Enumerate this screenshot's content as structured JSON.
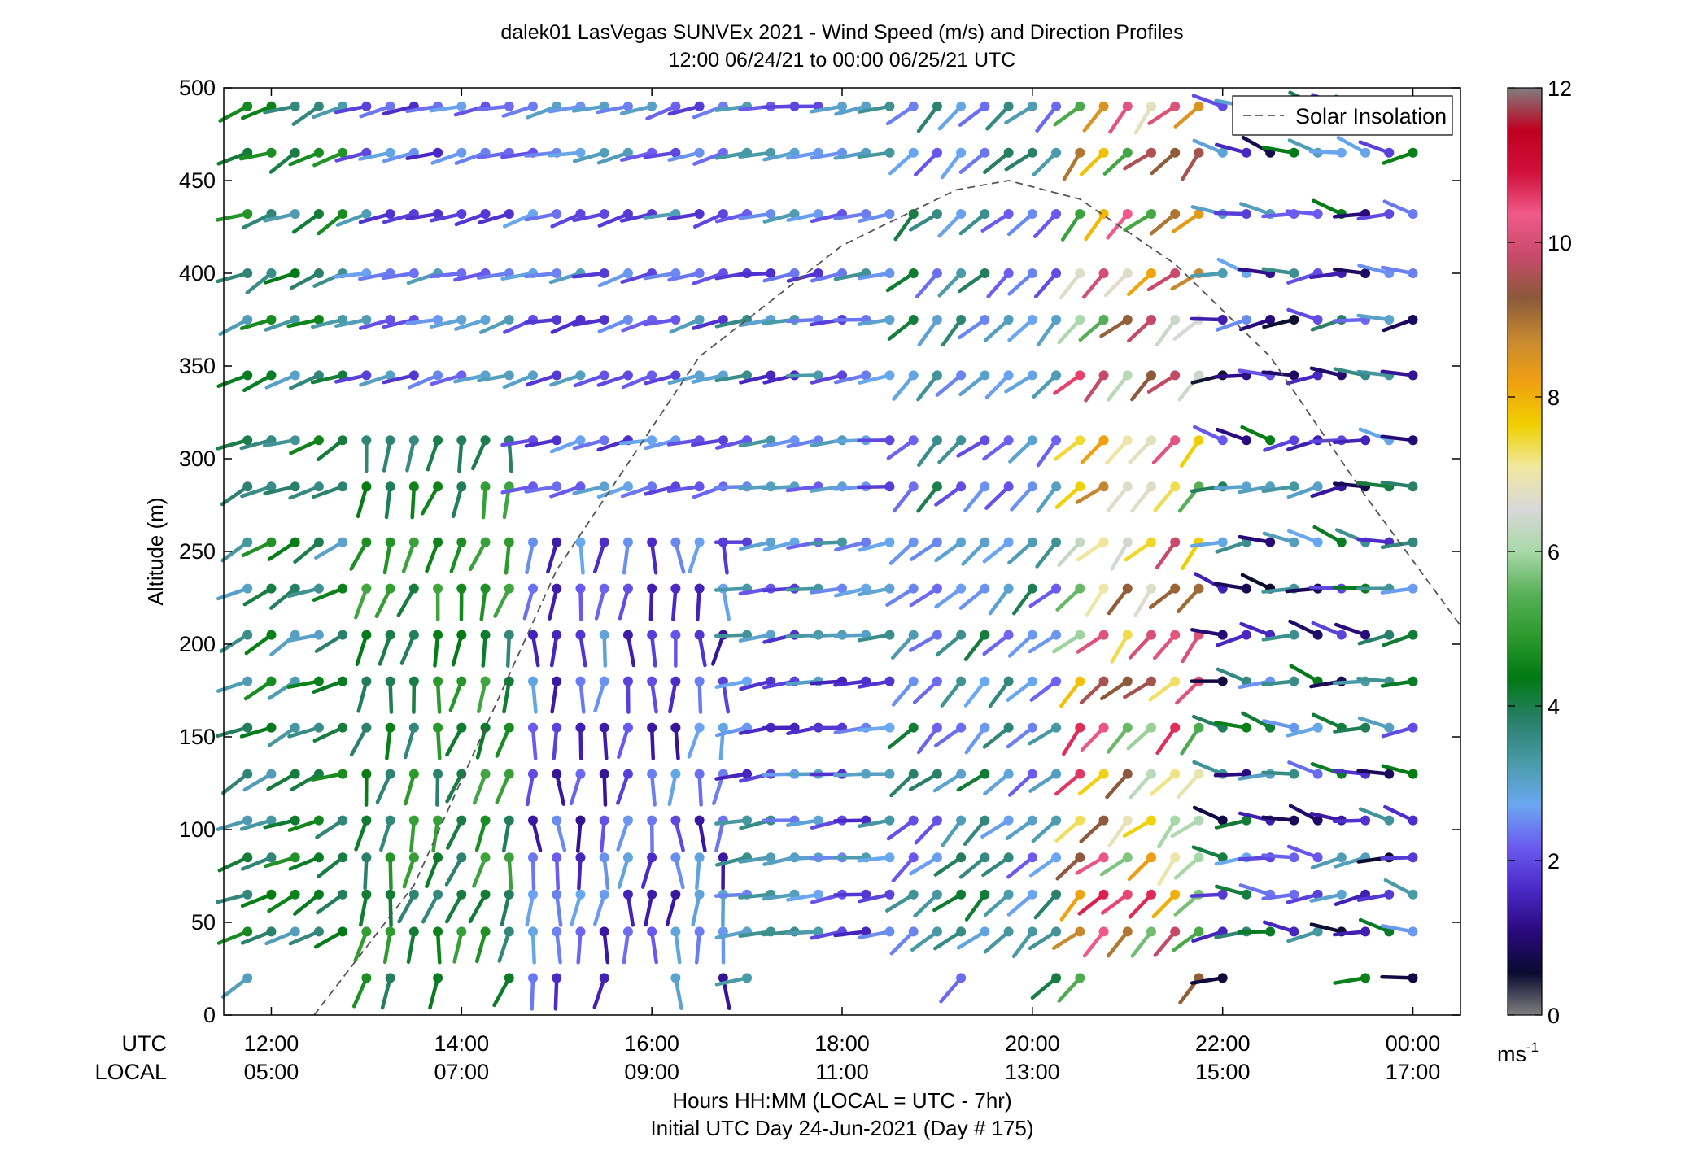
{
  "chart_data": {
    "type": "wind-barb-profile",
    "title": "dalek01 LasVegas SUNVEx 2021 - Wind Speed (m/s) and Direction Profiles",
    "subtitle": "12:00 06/24/21 to 00:00 06/25/21  UTC",
    "ylabel": "Altitude (m)",
    "xlabel_line1": "Hours HH:MM  (LOCAL = UTC - 7hr)",
    "xlabel_line2": "Initial UTC Day 24-Jun-2021 (Day # 175)",
    "ylim": [
      0,
      500
    ],
    "xlim_hours": [
      11.5,
      24.5
    ],
    "yticks": [
      0,
      50,
      100,
      150,
      200,
      250,
      300,
      350,
      400,
      450,
      500
    ],
    "xtick_hours": [
      12,
      14,
      16,
      18,
      20,
      22,
      24
    ],
    "row_labels": [
      "UTC",
      "LOCAL"
    ],
    "utc_tick_labels": [
      "12:00",
      "14:00",
      "16:00",
      "18:00",
      "20:00",
      "22:00",
      "00:00"
    ],
    "local_tick_labels": [
      "05:00",
      "07:00",
      "09:00",
      "11:00",
      "13:00",
      "15:00",
      "17:00"
    ],
    "colorbar": {
      "min": 0,
      "max": 12,
      "ticks": [
        0,
        2,
        4,
        6,
        8,
        10,
        12
      ],
      "unit_label": "ms",
      "unit_exponent": "-1"
    },
    "legend": {
      "position": "top-right",
      "entries": [
        "Solar Insolation"
      ]
    },
    "solar_insolation_curve": {
      "description": "dashed curve, normalized to altitude axis",
      "points": [
        [
          12.45,
          0
        ],
        [
          13.5,
          70
        ],
        [
          15.0,
          240
        ],
        [
          16.5,
          355
        ],
        [
          18.0,
          415
        ],
        [
          19.2,
          445
        ],
        [
          19.75,
          450
        ],
        [
          20.5,
          440
        ],
        [
          21.5,
          405
        ],
        [
          22.5,
          355
        ],
        [
          23.5,
          280
        ],
        [
          24.5,
          210
        ]
      ]
    },
    "times_hours": [
      11.75,
      12.0,
      12.25,
      12.5,
      12.75,
      13.0,
      13.25,
      13.5,
      13.75,
      14.0,
      14.25,
      14.5,
      14.75,
      15.0,
      15.25,
      15.5,
      15.75,
      16.0,
      16.25,
      16.5,
      16.75,
      17.0,
      17.25,
      17.5,
      17.75,
      18.0,
      18.25,
      18.5,
      18.75,
      19.0,
      19.25,
      19.5,
      19.75,
      20.0,
      20.25,
      20.5,
      20.75,
      21.0,
      21.25,
      21.5,
      21.75,
      22.0,
      22.25,
      22.5,
      22.75,
      23.0,
      23.25,
      23.5,
      23.75,
      24.0
    ],
    "altitudes_m": [
      20,
      45,
      65,
      85,
      105,
      130,
      155,
      180,
      205,
      230,
      255,
      285,
      310,
      345,
      375,
      400,
      432,
      465,
      490
    ],
    "regimes": [
      {
        "hours": [
          11.5,
          12.8
        ],
        "alt_m": [
          0,
          500
        ],
        "direction_deg_range": [
          100,
          130
        ],
        "speed_ms_range": [
          3.0,
          4.8
        ]
      },
      {
        "hours": [
          12.8,
          14.6
        ],
        "alt_m": [
          0,
          330
        ],
        "direction_deg_range": [
          150,
          185
        ],
        "speed_ms_range": [
          3.6,
          5.2
        ]
      },
      {
        "hours": [
          14.6,
          16.8
        ],
        "alt_m": [
          0,
          280
        ],
        "direction_deg_range": [
          160,
          195
        ],
        "speed_ms_range": [
          1.2,
          3.0
        ]
      },
      {
        "hours": [
          16.8,
          18.6
        ],
        "alt_m": [
          0,
          500
        ],
        "direction_deg_range": [
          90,
          105
        ],
        "speed_ms_range": [
          1.5,
          3.6
        ]
      },
      {
        "hours": [
          18.6,
          20.3
        ],
        "alt_m": [
          0,
          500
        ],
        "direction_deg_range": [
          120,
          145
        ],
        "speed_ms_range": [
          2.0,
          4.2
        ]
      },
      {
        "hours": [
          20.3,
          22.0
        ],
        "alt_m": [
          0,
          500
        ],
        "direction_deg_range": [
          120,
          150
        ],
        "speed_ms_range": [
          5.0,
          10.8
        ]
      },
      {
        "hours": [
          22.0,
          24.5
        ],
        "alt_m": [
          0,
          500
        ],
        "direction_deg_range": [
          60,
          110
        ],
        "speed_ms_range": [
          0.5,
          4.5
        ]
      }
    ]
  },
  "palette": {
    "background": "#ffffff",
    "axis": "#000000",
    "colorbar_stops": [
      "#7f7f7f",
      "#0a0a30",
      "#2a0a7f",
      "#4b2ac8",
      "#6b5cf0",
      "#6aa8f0",
      "#4a9aa8",
      "#2a7f6a",
      "#007a12",
      "#2e9a2e",
      "#58b058",
      "#a8d8a8",
      "#d8d8d8",
      "#f0e8a0",
      "#f0d000",
      "#f0a010",
      "#c88a30",
      "#8a5a3a",
      "#c84a6a",
      "#f05a8a",
      "#d0103a",
      "#c00020",
      "#7f7f7f"
    ]
  }
}
